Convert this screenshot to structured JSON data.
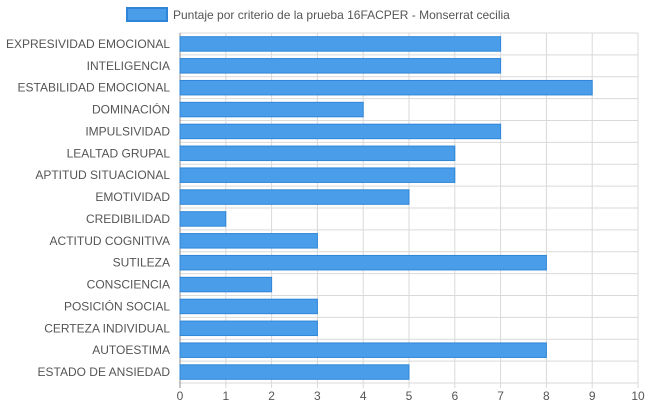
{
  "chart_data": {
    "type": "bar",
    "orientation": "horizontal",
    "legend": {
      "label": "Puntaje por criterio de la prueba 16FACPER - Monserrat cecilia",
      "position": "top-center"
    },
    "categories": [
      "EXPRESIVIDAD EMOCIONAL",
      "INTELIGENCIA",
      "ESTABILIDAD EMOCIONAL",
      "DOMINACIÓN",
      "IMPULSIVIDAD",
      "LEALTAD GRUPAL",
      "APTITUD SITUACIONAL",
      "EMOTIVIDAD",
      "CREDIBILIDAD",
      "ACTITUD COGNITIVA",
      "SUTILEZA",
      "CONSCIENCIA",
      "POSICIÓN SOCIAL",
      "CERTEZA INDIVIDUAL",
      "AUTOESTIMA",
      "ESTADO DE ANSIEDAD"
    ],
    "series": [
      {
        "name": "Puntaje por criterio de la prueba 16FACPER - Monserrat cecilia",
        "values": [
          7,
          7,
          9,
          4,
          7,
          6,
          6,
          5,
          1,
          3,
          8,
          2,
          3,
          3,
          8,
          5
        ]
      }
    ],
    "xlim": [
      0,
      10
    ],
    "xticks": [
      0,
      1,
      2,
      3,
      4,
      5,
      6,
      7,
      8,
      9,
      10
    ],
    "grid": true,
    "colors": {
      "bar_fill": "#4a9de8",
      "bar_stroke": "#2f86d8",
      "grid": "#d9d9d9",
      "axis": "#8c8c8c",
      "text": "#555555"
    }
  }
}
